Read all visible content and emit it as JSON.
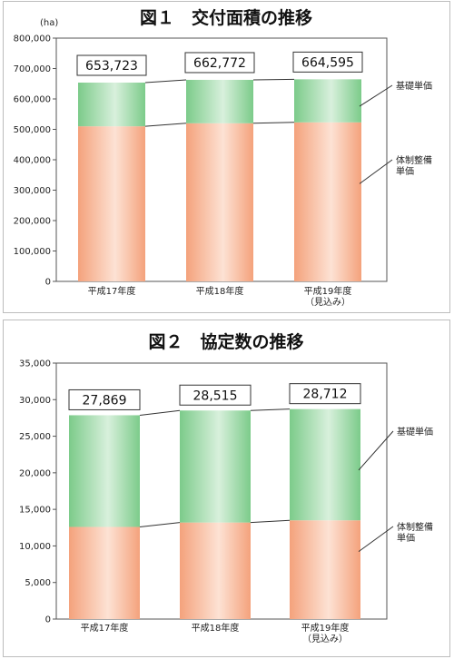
{
  "chart_data": [
    {
      "type": "bar",
      "stacked": true,
      "title": "図１　交付面積の推移",
      "unit": "(ha)",
      "categories": [
        [
          "平成17年度"
        ],
        [
          "平成18年度"
        ],
        [
          "平成19年度",
          "（見込み）"
        ]
      ],
      "totals": [
        "653,723",
        "662,772",
        "664,595"
      ],
      "total_values": [
        653723,
        662772,
        664595
      ],
      "series": [
        {
          "name": "体制整備単価",
          "label_lines": [
            "体制整備",
            "単価"
          ],
          "values": [
            510000,
            520000,
            523000
          ],
          "color": "#f4a27c"
        },
        {
          "name": "基礎単価",
          "label_lines": [
            "基礎単価"
          ],
          "values": [
            143723,
            142772,
            141595
          ],
          "color": "#7ccb8a"
        }
      ],
      "yticks": [
        "0",
        "100,000",
        "200,000",
        "300,000",
        "400,000",
        "500,000",
        "600,000",
        "700,000",
        "800,000"
      ],
      "ylim": [
        0,
        800000
      ],
      "grid": false,
      "legend": "right"
    },
    {
      "type": "bar",
      "stacked": true,
      "title": "図２　協定数の推移",
      "unit": "",
      "categories": [
        [
          "平成17年度"
        ],
        [
          "平成18年度"
        ],
        [
          "平成19年度",
          "（見込み）"
        ]
      ],
      "totals": [
        "27,869",
        "28,515",
        "28,712"
      ],
      "total_values": [
        27869,
        28515,
        28712
      ],
      "series": [
        {
          "name": "体制整備単価",
          "label_lines": [
            "体制整備",
            "単価"
          ],
          "values": [
            12600,
            13200,
            13500
          ],
          "color": "#f4a27c"
        },
        {
          "name": "基礎単価",
          "label_lines": [
            "基礎単価"
          ],
          "values": [
            15269,
            15315,
            15212
          ],
          "color": "#7ccb8a"
        }
      ],
      "yticks": [
        "0",
        "5,000",
        "10,000",
        "15,000",
        "20,000",
        "25,000",
        "30,000",
        "35,000"
      ],
      "ylim": [
        0,
        35000
      ],
      "grid": false,
      "legend": "right"
    }
  ]
}
